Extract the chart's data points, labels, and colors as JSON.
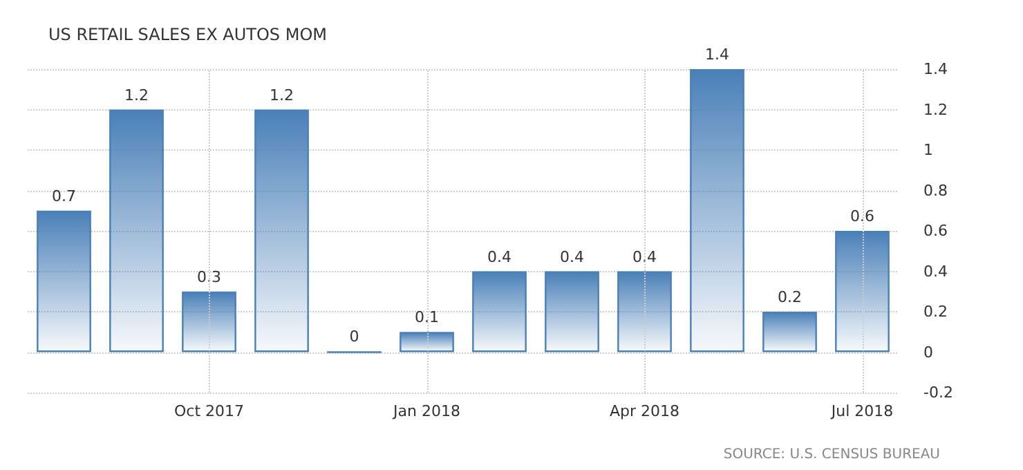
{
  "chart_data": {
    "type": "bar",
    "title": "US RETAIL SALES EX AUTOS MOM",
    "categories": [
      null,
      null,
      "Oct 2017",
      null,
      null,
      "Jan 2018",
      null,
      null,
      "Apr 2018",
      null,
      null,
      "Jul 2018"
    ],
    "values": [
      0.7,
      1.2,
      0.3,
      1.2,
      0,
      0.1,
      0.4,
      0.4,
      0.4,
      1.4,
      0.2,
      0.6
    ],
    "color": "#4a80b8",
    "ylim": [
      -0.2,
      1.4
    ],
    "yticks": [
      -0.2,
      0,
      0.2,
      0.4,
      0.6,
      0.8,
      1,
      1.2,
      1.4
    ],
    "grid": true,
    "data_labels": true,
    "annotations": [
      "SOURCE: U.S. CENSUS BUREAU"
    ]
  }
}
